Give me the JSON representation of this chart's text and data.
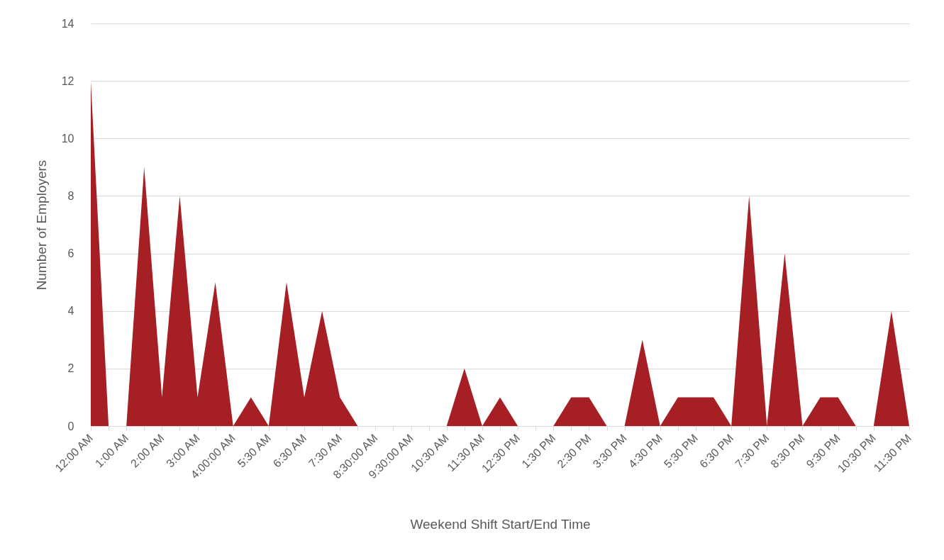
{
  "chart_data": {
    "type": "area",
    "xlabel": "Weekend Shift Start/End Time",
    "ylabel": "Number of Employers",
    "categories": [
      "12:00 AM",
      null,
      "1:00 AM",
      null,
      "2:00 AM",
      null,
      "3:00 AM",
      null,
      "4:00:00 AM",
      null,
      "5:30 AM",
      null,
      "6:30 AM",
      null,
      "7:30 AM",
      null,
      "8:30:00 AM",
      null,
      "9:30:00 AM",
      null,
      "10:30 AM",
      null,
      "11:30 AM",
      null,
      "12:30 PM",
      null,
      "1:30 PM",
      null,
      "2:30 PM",
      null,
      "3:30 PM",
      null,
      "4:30 PM",
      null,
      "5:30 PM",
      null,
      "6:30 PM",
      null,
      "7:30 PM",
      null,
      "8:30 PM",
      null,
      "9:30 PM",
      null,
      "10:30 PM",
      null,
      "11:30 PM"
    ],
    "series": [
      {
        "color": "#a61f24",
        "values": [
          12,
          0,
          0,
          9,
          1,
          8,
          1,
          5,
          0,
          1,
          0,
          5,
          1,
          4,
          1,
          0,
          0,
          0,
          0,
          0,
          0,
          2,
          0,
          1,
          0,
          0,
          0,
          1,
          1,
          0,
          0,
          3,
          0,
          1,
          1,
          1,
          0,
          8,
          0,
          6,
          0,
          1,
          1,
          0,
          0,
          4,
          0
        ]
      }
    ],
    "ylim": [
      0,
      14
    ],
    "yticks": [
      0,
      2,
      4,
      6,
      8,
      10,
      12,
      14
    ],
    "grid": "y"
  }
}
